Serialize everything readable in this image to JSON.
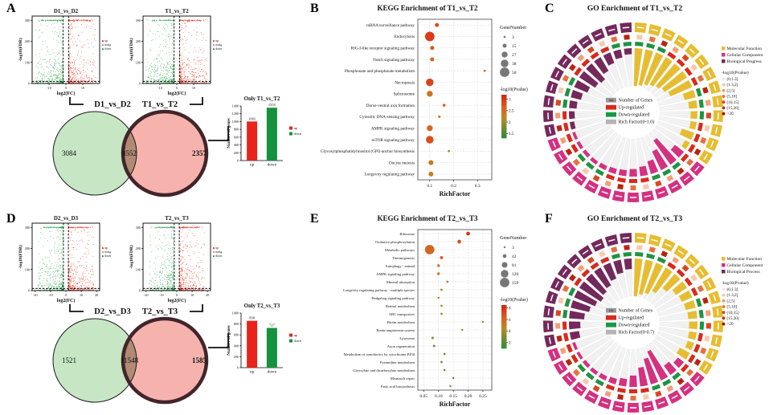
{
  "panels": {
    "A": {
      "label": "A"
    },
    "B": {
      "label": "B"
    },
    "C": {
      "label": "C"
    },
    "D": {
      "label": "D"
    },
    "E": {
      "label": "E"
    },
    "F": {
      "label": "F"
    }
  },
  "chart_data": {
    "deg_A": {
      "volcano1": {
        "type": "scatter",
        "title": "D1_vs_D2",
        "xlabel": "log2(FC)",
        "ylabel": "-log10(FDR)",
        "xticks": [
          -10,
          0,
          10
        ],
        "yticks": [
          0,
          100,
          200,
          300
        ],
        "xlim": [
          -20,
          20
        ],
        "ylim": [
          0,
          320
        ],
        "legend": [
          "up",
          "nosig",
          "down"
        ]
      },
      "volcano2": {
        "type": "scatter",
        "title": "T1_vs_T2",
        "xlabel": "log2(FC)",
        "ylabel": "-log10(FDR)",
        "xticks": [
          -10,
          0,
          10
        ],
        "yticks": [
          0,
          100,
          200,
          300
        ],
        "xlim": [
          -20,
          20
        ],
        "ylim": [
          0,
          320
        ],
        "legend": [
          "up",
          "nosig",
          "down"
        ]
      },
      "venn": {
        "type": "venn",
        "left_label": "D1_vs_D2",
        "right_label": "T1_vs_T2",
        "left_only": "3084",
        "overlap": "8552",
        "right_only": "2357"
      },
      "bar": {
        "type": "bar",
        "title": "Only T1_vs_T2",
        "ylabel": "Number of genes",
        "categories": [
          "up",
          "down"
        ],
        "values": [
          1002,
          1355
        ],
        "value_labels": [
          "1002",
          "1355"
        ],
        "ylim": [
          0,
          1400
        ],
        "yticks": [
          0,
          200,
          400,
          600,
          800,
          1000,
          1200,
          1400
        ],
        "colors": [
          "#e8241c",
          "#14923c"
        ],
        "legend": [
          "up",
          "down"
        ]
      }
    },
    "deg_D": {
      "volcano1": {
        "type": "scatter",
        "title": "D2_vs_D3",
        "xlabel": "log2(FC)",
        "ylabel": "-log10(FDR)",
        "xticks": [
          -20,
          -10,
          0,
          10,
          20
        ],
        "yticks": [
          0,
          100,
          200,
          300
        ],
        "xlim": [
          -22,
          22
        ],
        "ylim": [
          0,
          320
        ],
        "legend": [
          "up",
          "nosig",
          "down"
        ]
      },
      "volcano2": {
        "type": "scatter",
        "title": "T2_vs_T3",
        "xlabel": "log2(FC)",
        "ylabel": "-log10(FDR)",
        "xticks": [
          -20,
          -10,
          0,
          10,
          20
        ],
        "yticks": [
          0,
          100,
          200,
          300
        ],
        "xlim": [
          -22,
          22
        ],
        "ylim": [
          0,
          320
        ],
        "legend": [
          "up",
          "nosig",
          "down"
        ]
      },
      "venn": {
        "type": "venn",
        "left_label": "D2_vs_D3",
        "right_label": "T2_vs_T3",
        "left_only": "1521",
        "overlap": "11548",
        "right_only": "1585"
      },
      "bar": {
        "type": "bar",
        "title": "Only T2_vs_T3",
        "ylabel": "Number of genes",
        "categories": [
          "up",
          "down"
        ],
        "values": [
          858,
          727
        ],
        "value_labels": [
          "858",
          "727"
        ],
        "ylim": [
          0,
          1000
        ],
        "yticks": [
          0,
          200,
          400,
          600,
          800,
          1000
        ],
        "colors": [
          "#e8241c",
          "#14923c"
        ],
        "legend": [
          "up",
          "down"
        ]
      }
    },
    "kegg_B": {
      "type": "scatter",
      "title": "KEGG Enrichment of T1_vs_T2",
      "xlabel": "RichFactor",
      "xlim": [
        0.05,
        0.36
      ],
      "xticks": [
        0.1,
        0.2,
        0.3
      ],
      "xtick_labels": [
        "0.1",
        "0.2",
        "0.3"
      ],
      "gene_number_legend": {
        "title": "GeneNumber",
        "sizes": [
          3,
          15,
          27,
          38,
          50
        ]
      },
      "colorbar": {
        "title": "-log10(Pvalue)",
        "range": [
          1.3,
          3.2
        ],
        "ticks": [
          3,
          2.5,
          2,
          1.5
        ],
        "tick_labels": [
          "3",
          "2.5",
          "2",
          "1.5"
        ]
      },
      "pathways": [
        {
          "name": "mRNA surveillance pathway",
          "rich": 0.13,
          "genes": 15,
          "logp": 2.8
        },
        {
          "name": "Endocytosis",
          "rich": 0.1,
          "genes": 50,
          "logp": 3.0
        },
        {
          "name": "RIG-I-like receptor signaling pathway",
          "rich": 0.11,
          "genes": 15,
          "logp": 2.7
        },
        {
          "name": "Notch signaling pathway",
          "rich": 0.11,
          "genes": 15,
          "logp": 2.6
        },
        {
          "name": "Phosphonate and phosphinate metabolism",
          "rich": 0.33,
          "genes": 3,
          "logp": 2.5
        },
        {
          "name": "Necroptosis",
          "rich": 0.1,
          "genes": 38,
          "logp": 2.9
        },
        {
          "name": "Spliceosome",
          "rich": 0.1,
          "genes": 27,
          "logp": 2.4
        },
        {
          "name": "Dorso-ventral axis formation",
          "rich": 0.16,
          "genes": 8,
          "logp": 2.5
        },
        {
          "name": "Cytosolic DNA-sensing pathway",
          "rich": 0.14,
          "genes": 5,
          "logp": 2.3
        },
        {
          "name": "AMPK signaling pathway",
          "rich": 0.1,
          "genes": 27,
          "logp": 2.6
        },
        {
          "name": "mTOR signaling pathway",
          "rich": 0.1,
          "genes": 38,
          "logp": 2.8
        },
        {
          "name": "Glycosylphosphatidylinositol (GPI)-anchor biosynthesis",
          "rich": 0.18,
          "genes": 3,
          "logp": 2.0
        },
        {
          "name": "Oocyte meiosis",
          "rich": 0.105,
          "genes": 20,
          "logp": 2.4
        },
        {
          "name": "Longevity regulating pathway",
          "rich": 0.105,
          "genes": 20,
          "logp": 2.3
        }
      ]
    },
    "kegg_E": {
      "type": "scatter",
      "title": "KEGG Enrichment of T2_vs_T3",
      "xlabel": "RichFactor",
      "xlim": [
        0.03,
        0.28
      ],
      "xticks": [
        0.05,
        0.1,
        0.15,
        0.2,
        0.25
      ],
      "xtick_labels": [
        "0.05",
        "0.10",
        "0.15",
        "0.20",
        "0.25"
      ],
      "gene_number_legend": {
        "title": "GeneNumber",
        "sizes": [
          3,
          42,
          81,
          120,
          159
        ]
      },
      "colorbar": {
        "title": "-log10(Pvalue)",
        "range": [
          1,
          8.5
        ],
        "ticks": [
          8,
          6,
          4,
          2
        ],
        "tick_labels": [
          "8",
          "6",
          "4",
          "2"
        ]
      },
      "pathways": [
        {
          "name": "Ribosome",
          "rich": 0.2,
          "genes": 42,
          "logp": 8
        },
        {
          "name": "Oxidative phosphorylation",
          "rich": 0.17,
          "genes": 42,
          "logp": 7
        },
        {
          "name": "Metabolic pathways",
          "rich": 0.07,
          "genes": 159,
          "logp": 6
        },
        {
          "name": "Thermogenesis",
          "rich": 0.11,
          "genes": 30,
          "logp": 6
        },
        {
          "name": "Autophagy - animal",
          "rich": 0.1,
          "genes": 20,
          "logp": 5
        },
        {
          "name": "AMPK signaling pathway",
          "rich": 0.1,
          "genes": 20,
          "logp": 5
        },
        {
          "name": "Mineral absorption",
          "rich": 0.13,
          "genes": 8,
          "logp": 5
        },
        {
          "name": "Longevity regulating pathway - multiple species",
          "rich": 0.11,
          "genes": 10,
          "logp": 4
        },
        {
          "name": "Hedgehog signaling pathway",
          "rich": 0.1,
          "genes": 6,
          "logp": 4
        },
        {
          "name": "Retinol metabolism",
          "rich": 0.11,
          "genes": 8,
          "logp": 4
        },
        {
          "name": "ABC transporters",
          "rich": 0.11,
          "genes": 8,
          "logp": 3.5
        },
        {
          "name": "Biotin metabolism",
          "rich": 0.25,
          "genes": 3,
          "logp": 3.5
        },
        {
          "name": "Renin-angiotensin system",
          "rich": 0.18,
          "genes": 3,
          "logp": 3
        },
        {
          "name": "Lysosome",
          "rich": 0.08,
          "genes": 15,
          "logp": 3
        },
        {
          "name": "Axon regeneration",
          "rich": 0.085,
          "genes": 12,
          "logp": 3
        },
        {
          "name": "Metabolism of xenobiotics by cytochrome P450",
          "rich": 0.12,
          "genes": 8,
          "logp": 2.5
        },
        {
          "name": "Pyrimidine metabolism",
          "rich": 0.11,
          "genes": 8,
          "logp": 2.5
        },
        {
          "name": "Glyoxylate and dicarboxylate metabolism",
          "rich": 0.12,
          "genes": 6,
          "logp": 2
        },
        {
          "name": "Mismatch repair",
          "rich": 0.15,
          "genes": 3,
          "logp": 2
        },
        {
          "name": "Fatty acid biosynthesis",
          "rich": 0.14,
          "genes": 3,
          "logp": 2
        }
      ]
    },
    "go_C": {
      "type": "circular",
      "title": "GO Enrichment of T1_vs_T2",
      "categories": [
        {
          "key": "mf",
          "label": "Molecular Function",
          "color": "#e6bd31"
        },
        {
          "key": "cc",
          "label": "Cellular Component",
          "color": "#d43181"
        },
        {
          "key": "bp",
          "label": "Biological Progress",
          "color": "#74295c"
        }
      ],
      "pvalue_legend": {
        "title": "-log10(Pvalue)",
        "bins": [
          "(0,1.3]",
          "(1.3,2]",
          "(2,5]",
          "(5,10]",
          "(10,15]",
          "(15,20]",
          ">20"
        ]
      },
      "center_legend": {
        "genes_swatch_text": "300",
        "items": [
          "Number of Genes",
          "Up-regulated",
          "Down-regulated",
          "Rich Factor(0-1.0)"
        ]
      },
      "bars": {
        "mf": [
          1.0,
          0.96,
          0.9,
          0.84,
          0.78,
          0.71,
          0.63,
          0.3,
          0.22,
          0.18,
          0.16,
          0.34,
          0.14
        ],
        "cc": [
          0.3,
          0.78,
          0.55,
          0.35,
          0.25,
          0.2,
          0.16,
          0.14,
          0.12,
          0.1,
          0.1,
          0.09,
          0.08
        ],
        "bp": [
          0.12,
          0.15,
          0.2,
          0.28,
          0.38,
          0.5,
          0.55,
          0.42,
          0.3,
          0.22,
          0.16
        ]
      }
    },
    "go_F": {
      "type": "circular",
      "title": "GO Enrichment of T2_vs_T3",
      "categories": [
        {
          "key": "mf",
          "label": "Molecular Function",
          "color": "#e6bd31"
        },
        {
          "key": "cc",
          "label": "Cellular Component",
          "color": "#d43181"
        },
        {
          "key": "bp",
          "label": "Biological Process",
          "color": "#74295c"
        }
      ],
      "pvalue_legend": {
        "title": "-log10(Pvalue)",
        "bins": [
          "(0,1.3]",
          "(1.3,2]",
          "(2,5]",
          "(5,10]",
          "(10,15]",
          "(15,20]",
          ">20"
        ]
      },
      "center_legend": {
        "genes_swatch_text": "100",
        "items": [
          "Number of Genes",
          "Up-regulated",
          "Down-regulated",
          "Rich Factor(0-0.7)"
        ]
      },
      "bars": {
        "mf": [
          1.0,
          0.93,
          0.85,
          0.72,
          0.5,
          0.35,
          0.3,
          0.27,
          0.24,
          0.22,
          0.2,
          0.18,
          0.3
        ],
        "cc": [
          0.2,
          0.3,
          0.85,
          0.7,
          0.5,
          0.3,
          0.2,
          0.15,
          0.12,
          0.1,
          0.1,
          0.08,
          0.08
        ],
        "bp": [
          0.25,
          0.3,
          0.4,
          0.5,
          0.6,
          0.68,
          0.62,
          0.55,
          0.45,
          0.35,
          0.28
        ]
      }
    }
  }
}
